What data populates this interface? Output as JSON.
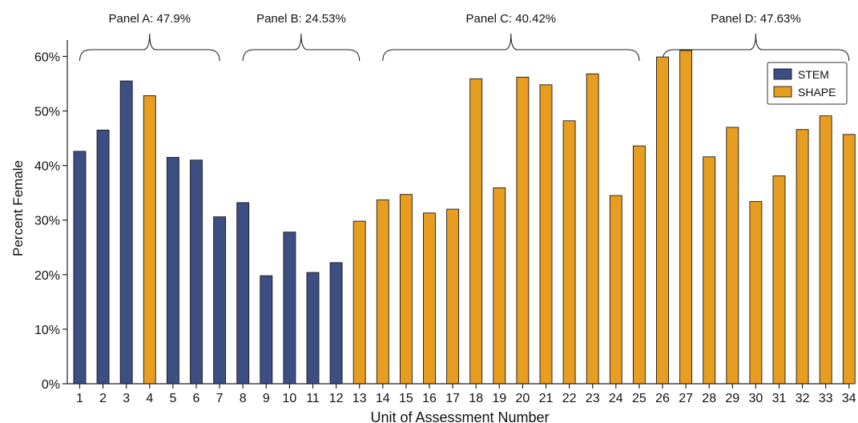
{
  "chart_data": {
    "type": "bar",
    "xlabel": "Unit of Assessment Number",
    "ylabel": "Percent Female",
    "ylim": [
      0,
      63
    ],
    "yticks": [
      "0%",
      "10%",
      "20%",
      "30%",
      "40%",
      "50%",
      "60%"
    ],
    "ytick_values": [
      0,
      10,
      20,
      30,
      40,
      50,
      60
    ],
    "categories": [
      "1",
      "2",
      "3",
      "4",
      "5",
      "6",
      "7",
      "8",
      "9",
      "10",
      "11",
      "12",
      "13",
      "14",
      "15",
      "16",
      "17",
      "18",
      "19",
      "20",
      "21",
      "22",
      "23",
      "24",
      "25",
      "26",
      "27",
      "28",
      "29",
      "30",
      "31",
      "32",
      "33",
      "34"
    ],
    "values": [
      42.6,
      46.5,
      55.5,
      52.8,
      41.5,
      41.0,
      30.6,
      33.2,
      19.8,
      27.8,
      20.4,
      22.2,
      29.8,
      33.7,
      34.7,
      31.3,
      32.0,
      55.9,
      35.9,
      56.2,
      54.8,
      48.2,
      56.8,
      34.5,
      43.6,
      59.9,
      61.1,
      41.6,
      47.0,
      33.4,
      38.1,
      46.6,
      49.1,
      45.7
    ],
    "groups": [
      "STEM",
      "STEM",
      "STEM",
      "SHAPE",
      "STEM",
      "STEM",
      "STEM",
      "STEM",
      "STEM",
      "STEM",
      "STEM",
      "STEM",
      "SHAPE",
      "SHAPE",
      "SHAPE",
      "SHAPE",
      "SHAPE",
      "SHAPE",
      "SHAPE",
      "SHAPE",
      "SHAPE",
      "SHAPE",
      "SHAPE",
      "SHAPE",
      "SHAPE",
      "SHAPE",
      "SHAPE",
      "SHAPE",
      "SHAPE",
      "SHAPE",
      "SHAPE",
      "SHAPE",
      "SHAPE",
      "SHAPE"
    ],
    "legend": {
      "position": "top-right",
      "entries": [
        {
          "name": "STEM",
          "color": "#3d4e83"
        },
        {
          "name": "SHAPE",
          "color": "#e79d20"
        }
      ]
    },
    "panels": [
      {
        "label": "Panel A: 47.9%",
        "from": 1,
        "to": 7
      },
      {
        "label": "Panel B: 24.53%",
        "from": 8,
        "to": 13
      },
      {
        "label": "Panel C: 40.42%",
        "from": 14,
        "to": 25
      },
      {
        "label": "Panel D: 47.63%",
        "from": 26,
        "to": 34
      }
    ],
    "grid": false
  }
}
